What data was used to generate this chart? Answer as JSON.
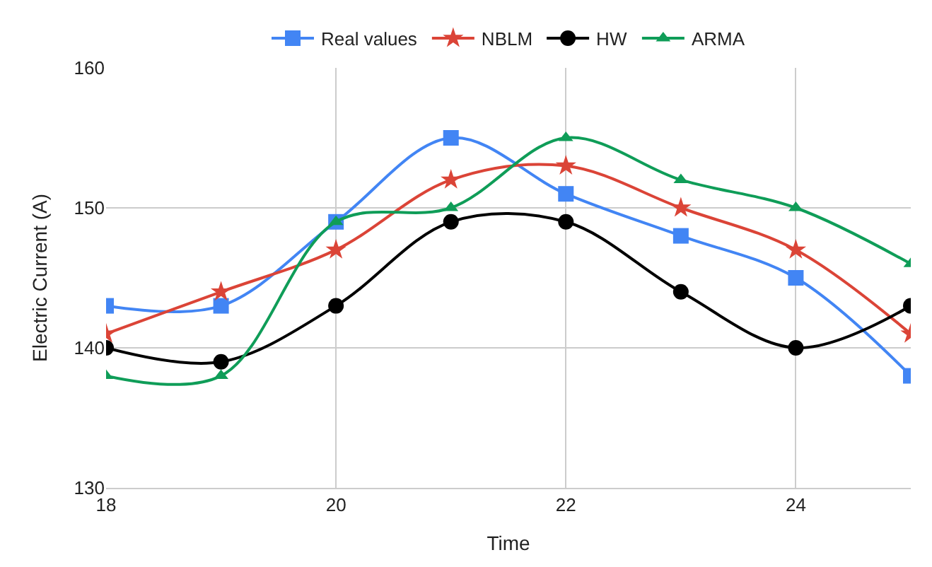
{
  "chart_data": {
    "type": "line",
    "xlabel": "Time",
    "ylabel": "Electric Current (A)",
    "x": [
      18,
      19,
      20,
      21,
      22,
      23,
      24,
      25
    ],
    "series": [
      {
        "name": "Real values",
        "color": "#4285f4",
        "marker": "square",
        "values": [
          143,
          143,
          149,
          155,
          151,
          148,
          145,
          138
        ]
      },
      {
        "name": "NBLM",
        "color": "#db4437",
        "marker": "star",
        "values": [
          141,
          144,
          147,
          152,
          153,
          150,
          147,
          141
        ]
      },
      {
        "name": "HW",
        "color": "#000000",
        "marker": "circle",
        "values": [
          140,
          139,
          143,
          149,
          149,
          144,
          140,
          143
        ]
      },
      {
        "name": "ARMA",
        "color": "#0f9d58",
        "marker": "triangle",
        "values": [
          138,
          138,
          149,
          150,
          155,
          152,
          150,
          146
        ]
      }
    ],
    "xlim": [
      18,
      25
    ],
    "xticks": [
      18,
      20,
      22,
      24
    ],
    "ylim": [
      130,
      160
    ],
    "yticks": [
      130,
      140,
      150,
      160
    ],
    "grid": true,
    "legend": "top"
  }
}
